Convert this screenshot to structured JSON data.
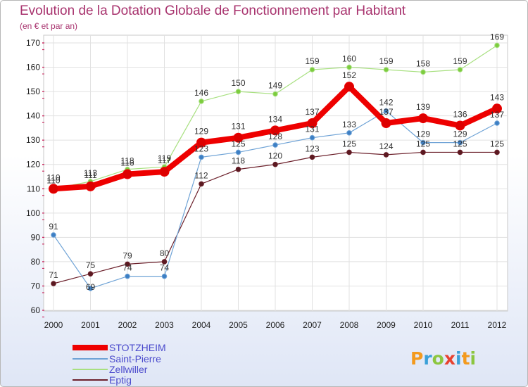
{
  "chart_data": {
    "type": "line",
    "title": "Evolution de la Dotation Globale de Fonctionnement par Habitant",
    "subtitle": "(en € et par an)",
    "xlabel": "",
    "ylabel": "",
    "ylim": [
      60,
      170
    ],
    "yticks": [
      60,
      70,
      80,
      90,
      100,
      110,
      120,
      130,
      140,
      150,
      160,
      170
    ],
    "categories": [
      "2000",
      "2001",
      "2002",
      "2003",
      "2004",
      "2005",
      "2006",
      "2007",
      "2008",
      "2009",
      "2010",
      "2011",
      "2012"
    ],
    "grid": true,
    "series": [
      {
        "name": "Eptig",
        "color": "#6b1f2a",
        "dot": "#5a1920",
        "width": 1.2,
        "values": [
          71,
          75,
          79,
          80,
          112,
          118,
          120,
          123,
          125,
          124,
          125,
          125,
          125
        ]
      },
      {
        "name": "Saint-Pierre",
        "color": "#6fa3d6",
        "dot": "#3d7fc4",
        "width": 1.2,
        "values": [
          91,
          69,
          74,
          74,
          123,
          125,
          128,
          131,
          133,
          142,
          129,
          129,
          137
        ]
      },
      {
        "name": "Zellwiller",
        "color": "#a8e080",
        "dot": "#7ccc3e",
        "width": 1.2,
        "values": [
          110,
          113,
          118,
          119,
          146,
          150,
          149,
          159,
          160,
          159,
          158,
          159,
          169
        ]
      },
      {
        "name": "STOTZHEIM",
        "color": "#ee0000",
        "dot": "#dd0000",
        "width": 8,
        "values": [
          110,
          111,
          116,
          117,
          129,
          131,
          134,
          137,
          152,
          137,
          139,
          136,
          143
        ]
      }
    ],
    "labels": [
      {
        "series": "Eptig",
        "values": [
          "71",
          "75",
          "79",
          "80",
          "112",
          "118",
          "120",
          "123",
          "125",
          "124",
          "125",
          "125",
          "125"
        ]
      },
      {
        "series": "Saint-Pierre",
        "values": [
          "91",
          "69",
          "74",
          "74",
          "123",
          "125",
          "128",
          "131",
          "133",
          "142",
          "129",
          "129",
          "137"
        ]
      },
      {
        "series": "Zellwiller",
        "values": [
          "110",
          "113",
          "118",
          "119",
          "146",
          "150",
          "149",
          "159",
          "160",
          "159",
          "158",
          "159",
          "169"
        ]
      },
      {
        "series": "STOTZHEIM",
        "values": [
          "110",
          "111",
          "116",
          "117",
          "129",
          "131",
          "134",
          "137",
          "152",
          "137",
          "139",
          "136",
          "143"
        ]
      }
    ],
    "legend": [
      "STOTZHEIM",
      "Saint-Pierre",
      "Zellwiller",
      "Eptig"
    ],
    "legend_colors": [
      "#ee0000",
      "#6fa3d6",
      "#a8e080",
      "#6b1f2a"
    ]
  },
  "logo": {
    "letters": [
      "P",
      "r",
      "o",
      "x",
      "i",
      "t",
      "i"
    ],
    "colors": [
      "#f39a1e",
      "#3aa0d8",
      "#8cc63f",
      "#e8422f",
      "#3aa0d8",
      "#f39a1e",
      "#8cc63f"
    ]
  }
}
